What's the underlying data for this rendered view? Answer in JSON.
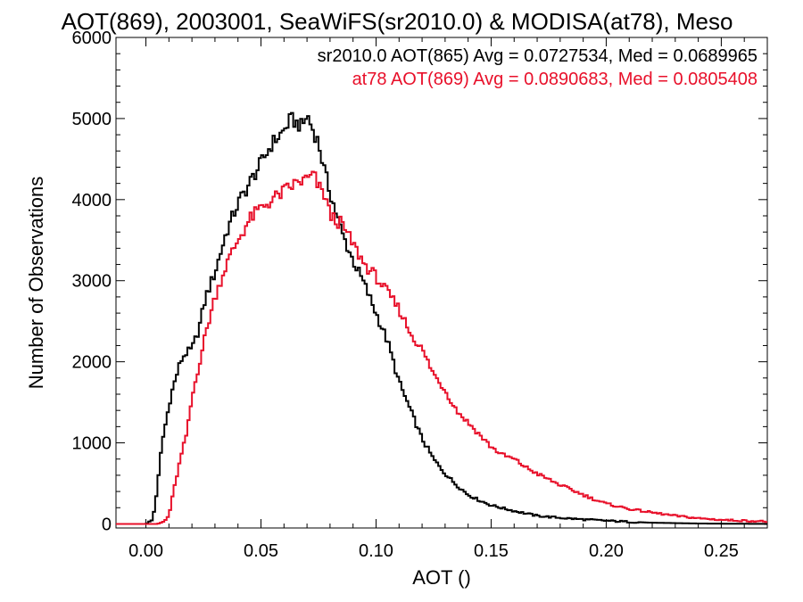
{
  "chart_data": {
    "type": "line",
    "title": "AOT(869), 2003001, SeaWiFS(sr2010.0) & MODISA(at78), Meso",
    "xlabel": "AOT ()",
    "ylabel": "Number of Observations",
    "xlim": [
      -0.013,
      0.27
    ],
    "ylim": [
      -50,
      6000
    ],
    "xticks": [
      0.0,
      0.05,
      0.1,
      0.15,
      0.2,
      0.25
    ],
    "xtick_labels": [
      "0.00",
      "0.05",
      "0.10",
      "0.15",
      "0.20",
      "0.25"
    ],
    "yticks": [
      0,
      1000,
      2000,
      3000,
      4000,
      5000,
      6000
    ],
    "ytick_labels": [
      "0",
      "1000",
      "2000",
      "3000",
      "4000",
      "5000",
      "6000"
    ],
    "grid": false,
    "legend_placement": "top-right",
    "step_style": "histogram",
    "series": [
      {
        "name": "sr2010.0",
        "color": "#000000",
        "legend_text": "sr2010.0 AOT(865) Avg = 0.0727534, Med = 0.0689965",
        "x": [
          -0.013,
          0.0,
          0.003,
          0.005,
          0.007,
          0.009,
          0.011,
          0.013,
          0.015,
          0.017,
          0.02,
          0.023,
          0.026,
          0.03,
          0.035,
          0.04,
          0.045,
          0.05,
          0.055,
          0.06,
          0.063,
          0.065,
          0.068,
          0.07,
          0.072,
          0.075,
          0.078,
          0.08,
          0.085,
          0.09,
          0.095,
          0.1,
          0.105,
          0.11,
          0.115,
          0.12,
          0.125,
          0.13,
          0.135,
          0.14,
          0.145,
          0.15,
          0.16,
          0.17,
          0.18,
          0.19,
          0.2,
          0.21,
          0.22,
          0.23,
          0.24,
          0.25,
          0.26,
          0.27
        ],
        "y": [
          0,
          0,
          50,
          450,
          1000,
          1300,
          1600,
          1800,
          2000,
          2100,
          2150,
          2400,
          2800,
          3100,
          3600,
          3950,
          4200,
          4450,
          4700,
          4850,
          5000,
          4950,
          4900,
          5050,
          4900,
          4700,
          4300,
          4100,
          3600,
          3250,
          2950,
          2600,
          2250,
          1750,
          1400,
          1050,
          800,
          620,
          480,
          360,
          290,
          230,
          160,
          100,
          75,
          55,
          40,
          25,
          15,
          10,
          5,
          3,
          2,
          0
        ]
      },
      {
        "name": "at78",
        "color": "#e8102a",
        "legend_text": "at78 AOT(869) Avg = 0.0890683, Med = 0.0805408",
        "x": [
          -0.013,
          0.005,
          0.008,
          0.01,
          0.012,
          0.015,
          0.018,
          0.02,
          0.023,
          0.026,
          0.03,
          0.035,
          0.04,
          0.045,
          0.05,
          0.055,
          0.06,
          0.065,
          0.07,
          0.073,
          0.075,
          0.078,
          0.08,
          0.085,
          0.09,
          0.095,
          0.1,
          0.105,
          0.11,
          0.115,
          0.12,
          0.125,
          0.13,
          0.135,
          0.14,
          0.145,
          0.15,
          0.155,
          0.16,
          0.165,
          0.17,
          0.175,
          0.18,
          0.185,
          0.19,
          0.195,
          0.2,
          0.21,
          0.22,
          0.23,
          0.24,
          0.25,
          0.26,
          0.27
        ],
        "y": [
          0,
          0,
          30,
          100,
          400,
          800,
          1150,
          1550,
          1950,
          2350,
          2800,
          3200,
          3500,
          3750,
          3900,
          4000,
          4100,
          4200,
          4250,
          4300,
          4150,
          4050,
          3800,
          3700,
          3450,
          3200,
          3050,
          2850,
          2650,
          2350,
          2150,
          1850,
          1650,
          1400,
          1250,
          1100,
          950,
          850,
          800,
          700,
          620,
          550,
          480,
          420,
          360,
          300,
          250,
          185,
          140,
          100,
          70,
          50,
          40,
          30
        ]
      }
    ]
  }
}
